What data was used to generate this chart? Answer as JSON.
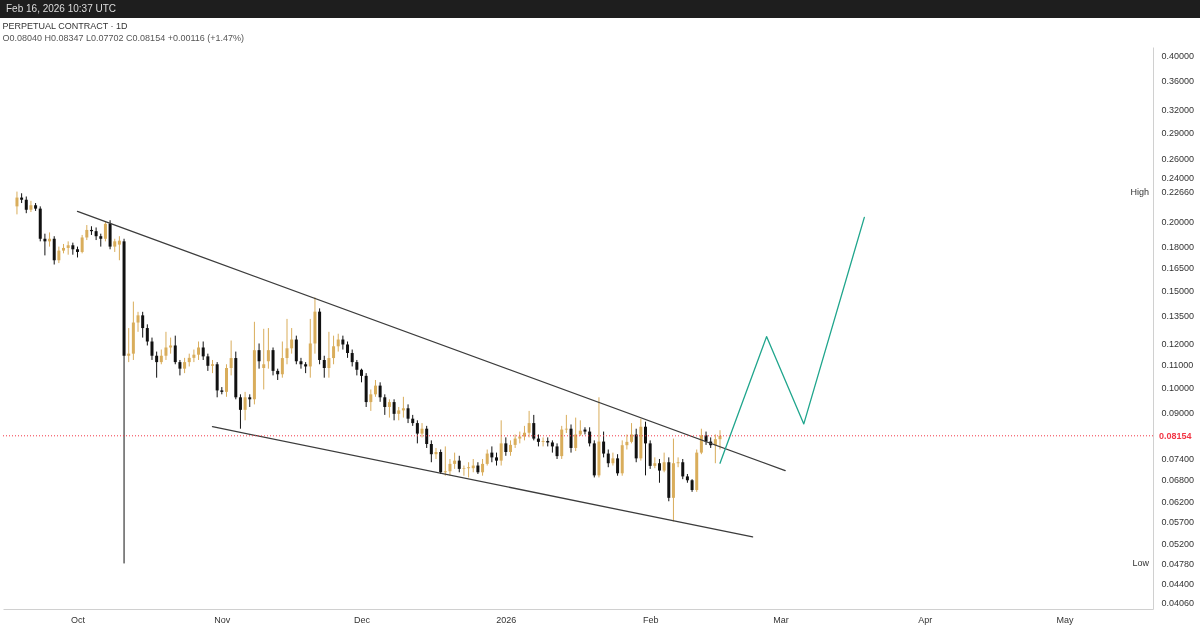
{
  "chart_data": {
    "type": "candlestick",
    "title": "PERPETUAL CONTRACT · 1D",
    "subtitle": "O0.08040 H0.08347 L0.07702 C0.08154 +0.00116 (+1.47%)",
    "x": [
      "2025-09-18",
      "2025-09-19",
      "2025-09-20",
      "2025-09-21",
      "2025-09-22",
      "2025-09-23",
      "2025-09-24",
      "2025-09-25",
      "2025-09-26",
      "2025-09-27",
      "2025-09-28",
      "2025-09-29",
      "2025-09-30",
      "2025-10-01",
      "2025-10-02",
      "2025-10-03",
      "2025-10-04",
      "2025-10-05",
      "2025-10-06",
      "2025-10-07",
      "2025-10-08",
      "2025-10-09",
      "2025-10-10",
      "2025-10-11",
      "2025-10-12",
      "2025-10-13",
      "2025-10-14",
      "2025-10-15",
      "2025-10-16",
      "2025-10-17",
      "2025-10-18",
      "2025-10-19",
      "2025-10-20",
      "2025-10-21",
      "2025-10-22",
      "2025-10-23",
      "2025-10-24",
      "2025-10-25",
      "2025-10-26",
      "2025-10-27",
      "2025-10-28",
      "2025-10-29",
      "2025-10-30",
      "2025-10-31",
      "2025-11-01",
      "2025-11-02",
      "2025-11-03",
      "2025-11-04",
      "2025-11-05",
      "2025-11-06",
      "2025-11-07",
      "2025-11-08",
      "2025-11-09",
      "2025-11-10",
      "2025-11-11",
      "2025-11-12",
      "2025-11-13",
      "2025-11-14",
      "2025-11-15",
      "2025-11-16",
      "2025-11-17",
      "2025-11-18",
      "2025-11-19",
      "2025-11-20",
      "2025-11-21",
      "2025-11-22",
      "2025-11-23",
      "2025-11-24",
      "2025-11-25",
      "2025-11-26",
      "2025-11-27",
      "2025-11-28",
      "2025-11-29",
      "2025-11-30",
      "2025-12-01",
      "2025-12-02",
      "2025-12-03",
      "2025-12-04",
      "2025-12-05",
      "2025-12-06",
      "2025-12-07",
      "2025-12-08",
      "2025-12-09",
      "2025-12-10",
      "2025-12-11",
      "2025-12-12",
      "2025-12-13",
      "2025-12-14",
      "2025-12-15",
      "2025-12-16",
      "2025-12-17",
      "2025-12-18",
      "2025-12-19",
      "2025-12-20",
      "2025-12-21",
      "2025-12-22",
      "2025-12-23",
      "2025-12-24",
      "2025-12-25",
      "2025-12-26",
      "2025-12-27",
      "2025-12-28",
      "2025-12-29",
      "2025-12-30",
      "2025-12-31",
      "2026-01-01",
      "2026-01-02",
      "2026-01-03",
      "2026-01-04",
      "2026-01-05",
      "2026-01-06",
      "2026-01-07",
      "2026-01-08",
      "2026-01-09",
      "2026-01-10",
      "2026-01-11",
      "2026-01-12",
      "2026-01-13",
      "2026-01-14",
      "2026-01-15",
      "2026-01-16",
      "2026-01-17",
      "2026-01-18",
      "2026-01-19",
      "2026-01-20",
      "2026-01-21",
      "2026-01-22",
      "2026-01-23",
      "2026-01-24",
      "2026-01-25",
      "2026-01-26",
      "2026-01-27",
      "2026-01-28",
      "2026-01-29",
      "2026-01-30",
      "2026-01-31",
      "2026-02-01",
      "2026-02-02",
      "2026-02-03",
      "2026-02-04",
      "2026-02-05",
      "2026-02-06",
      "2026-02-07",
      "2026-02-08",
      "2026-02-09",
      "2026-02-10",
      "2026-02-11",
      "2026-02-12",
      "2026-02-13",
      "2026-02-14",
      "2026-02-15",
      "2026-02-16"
    ],
    "ohlc": [
      [
        0.213,
        0.2266,
        0.206,
        0.221
      ],
      [
        0.221,
        0.225,
        0.216,
        0.219
      ],
      [
        0.219,
        0.222,
        0.207,
        0.21
      ],
      [
        0.21,
        0.218,
        0.208,
        0.214
      ],
      [
        0.214,
        0.216,
        0.209,
        0.211
      ],
      [
        0.211,
        0.213,
        0.184,
        0.186
      ],
      [
        0.186,
        0.19,
        0.1735,
        0.184
      ],
      [
        0.184,
        0.191,
        0.18,
        0.186
      ],
      [
        0.186,
        0.188,
        0.167,
        0.17
      ],
      [
        0.17,
        0.18,
        0.168,
        0.177
      ],
      [
        0.177,
        0.182,
        0.175,
        0.179
      ],
      [
        0.179,
        0.184,
        0.174,
        0.181
      ],
      [
        0.181,
        0.183,
        0.174,
        0.178
      ],
      [
        0.178,
        0.18,
        0.172,
        0.176
      ],
      [
        0.176,
        0.189,
        0.175,
        0.187
      ],
      [
        0.187,
        0.197,
        0.185,
        0.193
      ],
      [
        0.193,
        0.196,
        0.189,
        0.192
      ],
      [
        0.192,
        0.195,
        0.185,
        0.188
      ],
      [
        0.188,
        0.19,
        0.18,
        0.186
      ],
      [
        0.186,
        0.2,
        0.184,
        0.198
      ],
      [
        0.198,
        0.201,
        0.178,
        0.18
      ],
      [
        0.18,
        0.186,
        0.176,
        0.184
      ],
      [
        0.1815,
        0.188,
        0.17,
        0.1845
      ],
      [
        0.184,
        0.186,
        0.0478,
        0.114
      ],
      [
        0.114,
        0.128,
        0.111,
        0.115
      ],
      [
        0.115,
        0.143,
        0.112,
        0.131
      ],
      [
        0.131,
        0.137,
        0.126,
        0.135
      ],
      [
        0.135,
        0.137,
        0.123,
        0.128
      ],
      [
        0.128,
        0.13,
        0.119,
        0.121
      ],
      [
        0.121,
        0.123,
        0.112,
        0.114
      ],
      [
        0.114,
        0.116,
        0.104,
        0.111
      ],
      [
        0.111,
        0.117,
        0.11,
        0.114
      ],
      [
        0.114,
        0.126,
        0.112,
        0.118
      ],
      [
        0.118,
        0.123,
        0.115,
        0.119
      ],
      [
        0.119,
        0.124,
        0.11,
        0.111
      ],
      [
        0.111,
        0.112,
        0.105,
        0.108
      ],
      [
        0.108,
        0.113,
        0.106,
        0.111
      ],
      [
        0.111,
        0.115,
        0.109,
        0.113
      ],
      [
        0.113,
        0.117,
        0.111,
        0.1145
      ],
      [
        0.1145,
        0.121,
        0.112,
        0.118
      ],
      [
        0.118,
        0.121,
        0.112,
        0.1137
      ],
      [
        0.1137,
        0.115,
        0.107,
        0.1093
      ],
      [
        0.1093,
        0.112,
        0.106,
        0.11
      ],
      [
        0.11,
        0.111,
        0.0958,
        0.0986
      ],
      [
        0.0986,
        0.1,
        0.097,
        0.098
      ],
      [
        0.098,
        0.11,
        0.096,
        0.1083
      ],
      [
        0.1083,
        0.1215,
        0.105,
        0.1129
      ],
      [
        0.1129,
        0.116,
        0.095,
        0.0958
      ],
      [
        0.0958,
        0.097,
        0.084,
        0.0909
      ],
      [
        0.0909,
        0.098,
        0.087,
        0.0958
      ],
      [
        0.0958,
        0.097,
        0.092,
        0.095
      ],
      [
        0.095,
        0.1314,
        0.093,
        0.1167
      ],
      [
        0.1167,
        0.12,
        0.108,
        0.1114
      ],
      [
        0.1083,
        0.1276,
        0.099,
        0.11
      ],
      [
        0.1114,
        0.128,
        0.108,
        0.1167
      ],
      [
        0.1167,
        0.118,
        0.105,
        0.107
      ],
      [
        0.107,
        0.108,
        0.103,
        0.1055
      ],
      [
        0.1055,
        0.121,
        0.104,
        0.1129
      ],
      [
        0.1129,
        0.133,
        0.11,
        0.1176
      ],
      [
        0.1176,
        0.128,
        0.115,
        0.122
      ],
      [
        0.122,
        0.124,
        0.11,
        0.1114
      ],
      [
        0.1114,
        0.113,
        0.108,
        0.11
      ],
      [
        0.11,
        0.111,
        0.106,
        0.109
      ],
      [
        0.109,
        0.133,
        0.104,
        0.12
      ],
      [
        0.12,
        0.1455,
        0.115,
        0.1371
      ],
      [
        0.1371,
        0.139,
        0.11,
        0.112
      ],
      [
        0.112,
        0.114,
        0.104,
        0.1083
      ],
      [
        0.1083,
        0.126,
        0.104,
        0.1129
      ],
      [
        0.1129,
        0.124,
        0.11,
        0.1186
      ],
      [
        0.1186,
        0.125,
        0.116,
        0.122
      ],
      [
        0.122,
        0.124,
        0.117,
        0.1195
      ],
      [
        0.1195,
        0.121,
        0.113,
        0.1153
      ],
      [
        0.1153,
        0.117,
        0.109,
        0.111
      ],
      [
        0.111,
        0.112,
        0.105,
        0.1075
      ],
      [
        0.1075,
        0.108,
        0.102,
        0.1048
      ],
      [
        0.1048,
        0.106,
        0.092,
        0.0939
      ],
      [
        0.0939,
        0.099,
        0.0905,
        0.097
      ],
      [
        0.097,
        0.103,
        0.096,
        0.1006
      ],
      [
        0.1006,
        0.102,
        0.094,
        0.0958
      ],
      [
        0.0958,
        0.097,
        0.089,
        0.092
      ],
      [
        0.092,
        0.095,
        0.088,
        0.0939
      ],
      [
        0.0939,
        0.095,
        0.087,
        0.0894
      ],
      [
        0.0894,
        0.092,
        0.087,
        0.0907
      ],
      [
        0.0907,
        0.096,
        0.088,
        0.0915
      ],
      [
        0.0915,
        0.093,
        0.086,
        0.0876
      ],
      [
        0.0876,
        0.089,
        0.085,
        0.086
      ],
      [
        0.086,
        0.087,
        0.079,
        0.0823
      ],
      [
        0.0823,
        0.086,
        0.081,
        0.084
      ],
      [
        0.084,
        0.085,
        0.0775,
        0.0788
      ],
      [
        0.0788,
        0.08,
        0.073,
        0.0755
      ],
      [
        0.0755,
        0.0775,
        0.074,
        0.0762
      ],
      [
        0.0762,
        0.077,
        0.0695,
        0.07
      ],
      [
        0.07,
        0.078,
        0.069,
        0.0703
      ],
      [
        0.0703,
        0.074,
        0.069,
        0.0725
      ],
      [
        0.0725,
        0.076,
        0.071,
        0.0735
      ],
      [
        0.0735,
        0.075,
        0.07,
        0.071
      ],
      [
        0.071,
        0.072,
        0.069,
        0.0712
      ],
      [
        0.0712,
        0.073,
        0.0685,
        0.0715
      ],
      [
        0.0712,
        0.074,
        0.07,
        0.072
      ],
      [
        0.072,
        0.073,
        0.0695,
        0.07
      ],
      [
        0.07,
        0.074,
        0.069,
        0.0725
      ],
      [
        0.0725,
        0.077,
        0.072,
        0.0757
      ],
      [
        0.076,
        0.078,
        0.073,
        0.0745
      ],
      [
        0.0745,
        0.076,
        0.072,
        0.0735
      ],
      [
        0.0735,
        0.087,
        0.072,
        0.079
      ],
      [
        0.079,
        0.081,
        0.075,
        0.0762
      ],
      [
        0.0762,
        0.08,
        0.075,
        0.0785
      ],
      [
        0.0785,
        0.082,
        0.0775,
        0.0806
      ],
      [
        0.0806,
        0.083,
        0.079,
        0.0813
      ],
      [
        0.0813,
        0.085,
        0.08,
        0.0826
      ],
      [
        0.0826,
        0.0905,
        0.081,
        0.086
      ],
      [
        0.086,
        0.089,
        0.08,
        0.0806
      ],
      [
        0.0806,
        0.082,
        0.078,
        0.0795
      ],
      [
        0.0795,
        0.081,
        0.078,
        0.0798
      ],
      [
        0.0798,
        0.081,
        0.078,
        0.0793
      ],
      [
        0.0793,
        0.08,
        0.076,
        0.078
      ],
      [
        0.078,
        0.079,
        0.074,
        0.0749
      ],
      [
        0.0749,
        0.085,
        0.074,
        0.0837
      ],
      [
        0.0837,
        0.089,
        0.0825,
        0.084
      ],
      [
        0.084,
        0.0855,
        0.076,
        0.0775
      ],
      [
        0.0775,
        0.088,
        0.0765,
        0.082
      ],
      [
        0.082,
        0.087,
        0.0815,
        0.0833
      ],
      [
        0.0837,
        0.0845,
        0.082,
        0.083
      ],
      [
        0.083,
        0.0845,
        0.078,
        0.079
      ],
      [
        0.079,
        0.08,
        0.0685,
        0.0691
      ],
      [
        0.0691,
        0.0958,
        0.0685,
        0.0796
      ],
      [
        0.0796,
        0.083,
        0.0745,
        0.0757
      ],
      [
        0.0757,
        0.077,
        0.0715,
        0.0727
      ],
      [
        0.0727,
        0.076,
        0.072,
        0.0742
      ],
      [
        0.0742,
        0.0755,
        0.069,
        0.0697
      ],
      [
        0.0697,
        0.08,
        0.069,
        0.0784
      ],
      [
        0.0784,
        0.082,
        0.077,
        0.0795
      ],
      [
        0.0795,
        0.086,
        0.079,
        0.082
      ],
      [
        0.082,
        0.084,
        0.073,
        0.0742
      ],
      [
        0.0742,
        0.0875,
        0.0735,
        0.0847
      ],
      [
        0.0847,
        0.0865,
        0.0691,
        0.079
      ],
      [
        0.079,
        0.08,
        0.071,
        0.0719
      ],
      [
        0.0719,
        0.0745,
        0.0712,
        0.0727
      ],
      [
        0.0727,
        0.074,
        0.067,
        0.0705
      ],
      [
        0.0705,
        0.076,
        0.07,
        0.073
      ],
      [
        0.073,
        0.0745,
        0.062,
        0.0629
      ],
      [
        0.0629,
        0.0806,
        0.057,
        0.0727
      ],
      [
        0.0727,
        0.0745,
        0.0715,
        0.073
      ],
      [
        0.073,
        0.074,
        0.068,
        0.0688
      ],
      [
        0.0688,
        0.0695,
        0.067,
        0.0677
      ],
      [
        0.0677,
        0.068,
        0.0645,
        0.065
      ],
      [
        0.065,
        0.077,
        0.0645,
        0.076
      ],
      [
        0.076,
        0.084,
        0.0755,
        0.0817
      ],
      [
        0.0817,
        0.083,
        0.0785,
        0.0796
      ],
      [
        0.0796,
        0.081,
        0.0775,
        0.0784
      ],
      [
        0.0784,
        0.082,
        0.0727,
        0.0804
      ],
      [
        0.0804,
        0.08347,
        0.07702,
        0.08154
      ]
    ],
    "colors": [
      "#d9ad5b",
      "#111111",
      "#111111",
      "#d9ad5b",
      "#111111",
      "#111111",
      "#111111",
      "#d9ad5b",
      "#111111",
      "#d9ad5b",
      "#d9ad5b",
      "#d9ad5b",
      "#111111",
      "#111111",
      "#d9ad5b",
      "#d9ad5b",
      "#111111",
      "#111111",
      "#111111",
      "#d9ad5b",
      "#111111",
      "#d9ad5b",
      "#d9ad5b",
      "#111111",
      "#d9ad5b",
      "#d9ad5b",
      "#d9ad5b",
      "#111111",
      "#111111",
      "#111111",
      "#111111",
      "#d9ad5b",
      "#d9ad5b",
      "#d9ad5b",
      "#111111",
      "#111111",
      "#d9ad5b",
      "#d9ad5b",
      "#d9ad5b",
      "#d9ad5b",
      "#111111",
      "#111111",
      "#d9ad5b",
      "#111111",
      "#111111",
      "#d9ad5b",
      "#d9ad5b",
      "#111111",
      "#111111",
      "#d9ad5b",
      "#111111",
      "#d9ad5b",
      "#111111",
      "#d9ad5b",
      "#d9ad5b",
      "#111111",
      "#111111",
      "#d9ad5b",
      "#d9ad5b",
      "#d9ad5b",
      "#111111",
      "#111111",
      "#111111",
      "#d9ad5b",
      "#d9ad5b",
      "#111111",
      "#111111",
      "#d9ad5b",
      "#d9ad5b",
      "#d9ad5b",
      "#111111",
      "#111111",
      "#111111",
      "#111111",
      "#111111",
      "#111111",
      "#d9ad5b",
      "#d9ad5b",
      "#111111",
      "#111111",
      "#d9ad5b",
      "#111111",
      "#d9ad5b",
      "#d9ad5b",
      "#111111",
      "#111111",
      "#111111",
      "#d9ad5b",
      "#111111",
      "#111111",
      "#d9ad5b",
      "#111111",
      "#d9ad5b",
      "#d9ad5b",
      "#d9ad5b",
      "#111111",
      "#d9ad5b",
      "#d9ad5b",
      "#d9ad5b",
      "#111111",
      "#d9ad5b",
      "#d9ad5b",
      "#111111",
      "#111111",
      "#d9ad5b",
      "#111111",
      "#d9ad5b",
      "#d9ad5b",
      "#d9ad5b",
      "#d9ad5b",
      "#d9ad5b",
      "#111111",
      "#111111",
      "#d9ad5b",
      "#111111",
      "#111111",
      "#111111",
      "#d9ad5b",
      "#d9ad5b",
      "#111111",
      "#d9ad5b",
      "#d9ad5b",
      "#111111",
      "#111111",
      "#111111",
      "#d9ad5b",
      "#111111",
      "#111111",
      "#d9ad5b",
      "#111111",
      "#d9ad5b",
      "#d9ad5b",
      "#d9ad5b",
      "#111111",
      "#d9ad5b",
      "#111111",
      "#111111",
      "#d9ad5b",
      "#111111",
      "#d9ad5b",
      "#111111",
      "#d9ad5b",
      "#d9ad5b",
      "#111111",
      "#111111",
      "#111111",
      "#d9ad5b",
      "#d9ad5b",
      "#111111",
      "#111111",
      "#d9ad5b",
      "#d9ad5b"
    ],
    "series": [
      {
        "type": "line",
        "color": "#3c3c3c",
        "x": [
          "2025-10-01",
          "2026-03-02"
        ],
        "values": [
          0.2085,
          0.0705
        ]
      },
      {
        "type": "line",
        "color": "#3c3c3c",
        "x": [
          "2025-10-30",
          "2026-02-23"
        ],
        "values": [
          0.0847,
          0.0534
        ]
      },
      {
        "type": "line",
        "color": "#1fa58c",
        "x": [
          "2026-02-16",
          "2026-02-26",
          "2026-03-06",
          "2026-03-19"
        ],
        "values": [
          0.0727,
          0.1235,
          0.0857,
          0.2034
        ]
      }
    ],
    "xlim": [
      "2025-09-15",
      "2026-05-20"
    ],
    "xticks": [
      {
        "value": "2025-10-01",
        "label": "Oct"
      },
      {
        "value": "2025-11-01",
        "label": "Nov"
      },
      {
        "value": "2025-12-01",
        "label": "Dec"
      },
      {
        "value": "2026-01-01",
        "label": "2026"
      },
      {
        "value": "2026-02-01",
        "label": "Feb"
      },
      {
        "value": "2026-03-01",
        "label": "Mar"
      },
      {
        "value": "2026-04-01",
        "label": "Apr"
      },
      {
        "value": "2026-05-01",
        "label": "May"
      }
    ],
    "ylim": [
      0.0395,
      0.415
    ],
    "log": true,
    "yticks": [
      {
        "value": 0.4,
        "label": "0.40000"
      },
      {
        "value": 0.36,
        "label": "0.36000"
      },
      {
        "value": 0.32,
        "label": "0.32000"
      },
      {
        "value": 0.29,
        "label": "0.29000"
      },
      {
        "value": 0.26,
        "label": "0.26000"
      },
      {
        "value": 0.24,
        "label": "0.24000"
      },
      {
        "value": 0.2266,
        "label": "0.22660"
      },
      {
        "value": 0.2,
        "label": "0.20000"
      },
      {
        "value": 0.18,
        "label": "0.18000"
      },
      {
        "value": 0.165,
        "label": "0.16500"
      },
      {
        "value": 0.15,
        "label": "0.15000"
      },
      {
        "value": 0.135,
        "label": "0.13500"
      },
      {
        "value": 0.12,
        "label": "0.12000"
      },
      {
        "value": 0.11,
        "label": "0.11000"
      },
      {
        "value": 0.1,
        "label": "0.10000"
      },
      {
        "value": 0.09,
        "label": "0.09000"
      },
      {
        "value": 0.074,
        "label": "0.07400"
      },
      {
        "value": 0.068,
        "label": "0.06800"
      },
      {
        "value": 0.062,
        "label": "0.06200"
      },
      {
        "value": 0.057,
        "label": "0.05700"
      },
      {
        "value": 0.052,
        "label": "0.05200"
      },
      {
        "value": 0.0478,
        "label": "0.04780"
      },
      {
        "value": 0.044,
        "label": "0.04400"
      },
      {
        "value": 0.0406,
        "label": "0.04060"
      }
    ],
    "ref_lines": [
      {
        "axis": "y",
        "value": 0.08154,
        "label": "0.08154",
        "color": "#f23645",
        "line_style": "dotted"
      }
    ],
    "annotations": [
      "Feb 16, 2026 10:37 UTC",
      "High",
      "Low"
    ]
  }
}
